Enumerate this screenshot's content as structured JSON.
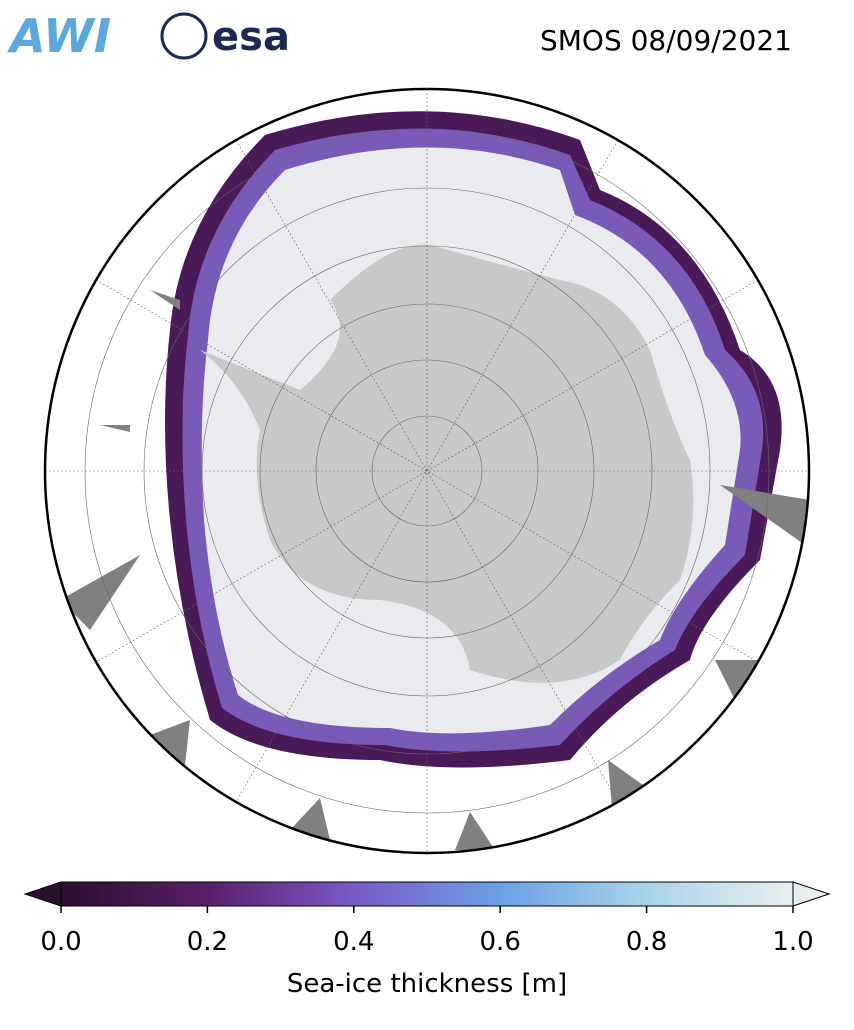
{
  "title": "SMOS 08/09/2021",
  "logos": [
    "AWI",
    "esa"
  ],
  "colorbar": {
    "label": "Sea-ice thickness [m]",
    "lim": [
      0,
      1
    ],
    "ticks": [
      {
        "value": 0,
        "label": "0.0"
      },
      {
        "value": 0.2,
        "label": "0.2"
      },
      {
        "value": 0.4,
        "label": "0.4"
      },
      {
        "value": 0.6,
        "label": "0.6"
      },
      {
        "value": 0.8,
        "label": "0.8"
      },
      {
        "value": 1,
        "label": "1.0"
      }
    ],
    "colors": [
      "#2a0f2e",
      "#5a1f6a",
      "#7a5ac8",
      "#6aa0e6",
      "#a8d4e8",
      "#e8eef0"
    ]
  }
}
